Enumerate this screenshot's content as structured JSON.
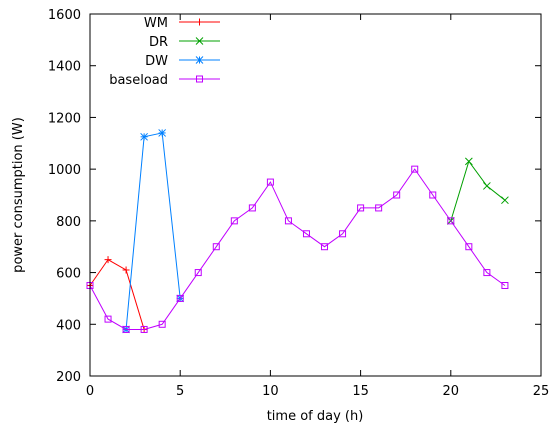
{
  "chart_data": {
    "type": "line",
    "xlabel": "time of day (h)",
    "ylabel": "power consumption (W)",
    "xlim": [
      0,
      25
    ],
    "ylim": [
      200,
      1600
    ],
    "x_ticks": [
      0,
      5,
      10,
      15,
      20,
      25
    ],
    "y_ticks": [
      200,
      400,
      600,
      800,
      1000,
      1200,
      1400,
      1600
    ],
    "grid": false,
    "legend_position": "top-left",
    "series": [
      {
        "name": "WM",
        "color": "#ff0000",
        "marker": "plus",
        "x": [
          0,
          1,
          2,
          3
        ],
        "y": [
          550,
          650,
          610,
          380
        ]
      },
      {
        "name": "DR",
        "color": "#00a000",
        "marker": "cross",
        "x": [
          20,
          21,
          22,
          23
        ],
        "y": [
          800,
          1030,
          935,
          880
        ]
      },
      {
        "name": "DW",
        "color": "#0080ff",
        "marker": "star",
        "x": [
          2,
          3,
          4,
          5
        ],
        "y": [
          380,
          1125,
          1140,
          500
        ]
      },
      {
        "name": "baseload",
        "color": "#c000ff",
        "marker": "square",
        "x": [
          0,
          1,
          2,
          3,
          4,
          5,
          6,
          7,
          8,
          9,
          10,
          11,
          12,
          13,
          14,
          15,
          16,
          17,
          18,
          19,
          20,
          21,
          22,
          23
        ],
        "y": [
          550,
          420,
          380,
          380,
          400,
          500,
          600,
          700,
          800,
          850,
          950,
          800,
          750,
          700,
          750,
          850,
          850,
          900,
          1000,
          900,
          800,
          700,
          600,
          550
        ]
      }
    ]
  }
}
